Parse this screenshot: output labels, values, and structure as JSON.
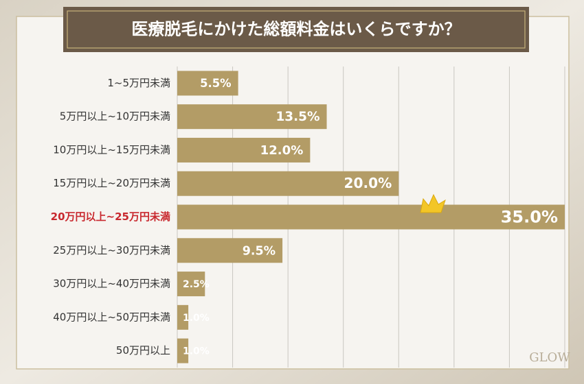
{
  "chart_data": {
    "type": "bar",
    "orientation": "horizontal",
    "title": "医療脱毛にかけた総額料金はいくらですか？",
    "categories": [
      "1~5万円未満",
      "5万円以上~10万円未満",
      "10万円以上~15万円未満",
      "15万円以上~20万円未満",
      "20万円以上~25万円未満",
      "25万円以上~30万円未満",
      "30万円以上~40万円未満",
      "40万円以上~50万円未満",
      "50万円以上"
    ],
    "values": [
      5.5,
      13.5,
      12.0,
      20.0,
      35.0,
      9.5,
      2.5,
      1.0,
      1.0
    ],
    "value_labels": [
      "5.5%",
      "13.5%",
      "12.0%",
      "20.0%",
      "35.0%",
      "9.5%",
      "2.5%",
      "1.0%",
      "1.0%"
    ],
    "color": "#b39c66",
    "highlight": 4,
    "highlight_color": "#c8282e",
    "xlim": [
      0,
      35
    ],
    "xticks": [
      0,
      5,
      10,
      15,
      20,
      25,
      30,
      35
    ],
    "grid": true,
    "watermark": "GLOW"
  }
}
